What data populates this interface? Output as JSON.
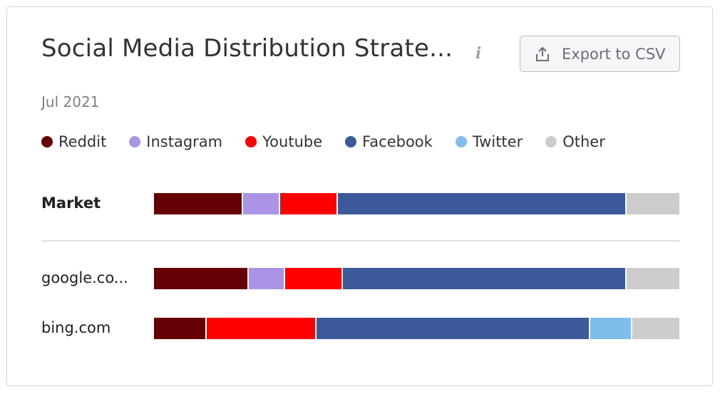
{
  "header": {
    "title": "Social Media Distribution Strate...",
    "info_icon": "i",
    "export_label": "Export to CSV",
    "date": "Jul 2021"
  },
  "colors": {
    "Reddit": "#650005",
    "Instagram": "#ab93e5",
    "Youtube": "#fe0000",
    "Facebook": "#3c5a9a",
    "Twitter": "#7fbdeb",
    "Other": "#cccccc"
  },
  "chart_data": {
    "type": "bar",
    "stacked": true,
    "orientation": "horizontal",
    "categories": [
      "Market",
      "google.co...",
      "bing.com"
    ],
    "series": [
      {
        "name": "Reddit",
        "values": [
          17,
          18,
          10
        ]
      },
      {
        "name": "Instagram",
        "values": [
          7,
          7,
          0
        ]
      },
      {
        "name": "Youtube",
        "values": [
          11,
          11,
          21
        ]
      },
      {
        "name": "Facebook",
        "values": [
          55,
          54,
          52
        ]
      },
      {
        "name": "Twitter",
        "values": [
          0,
          0,
          8
        ]
      },
      {
        "name": "Other",
        "values": [
          10,
          10,
          9
        ]
      }
    ],
    "xlim": [
      0,
      100
    ],
    "legend_position": "top-left"
  }
}
